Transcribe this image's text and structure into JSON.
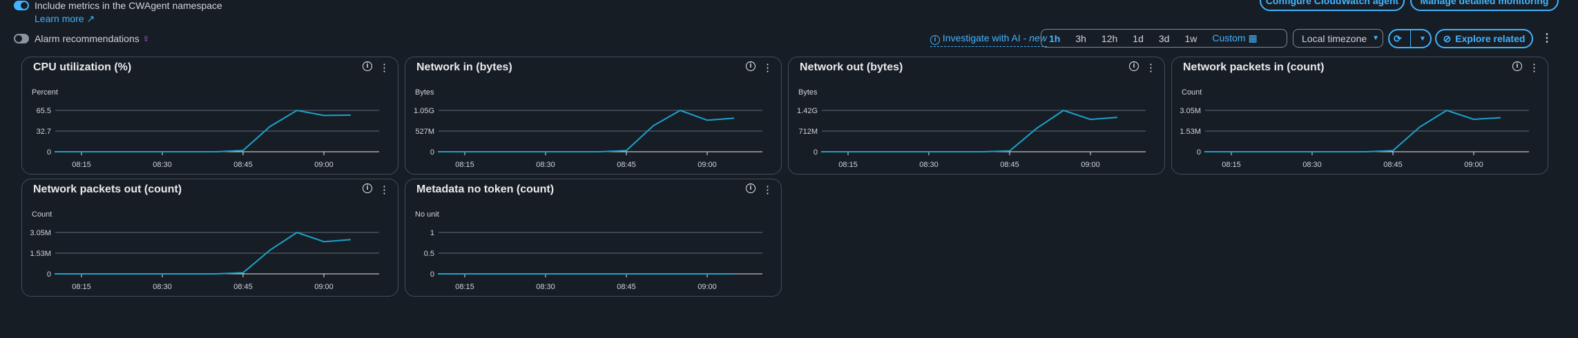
{
  "top": {
    "namespace_text": "Include metrics in the CWAgent namespace",
    "learn_more": "Learn more",
    "configure_agent": "Configure CloudWatch agent",
    "manage_monitoring": "Manage detailed monitoring",
    "alarm_recommendations": "Alarm recommendations",
    "investigate": "Investigate with AI - ",
    "investigate_new": "new",
    "time_ranges": [
      "1h",
      "3h",
      "12h",
      "1d",
      "3d",
      "1w",
      "Custom"
    ],
    "selected_range": "1h",
    "timezone": "Local timezone",
    "explore": "Explore related"
  },
  "colors": {
    "line": "#1aa3cc",
    "accent": "#42b4ff",
    "grid": "#5f6b7a"
  },
  "chart_data": [
    {
      "type": "line",
      "title": "CPU utilization (%)",
      "ylabel": "Percent",
      "ylim": [
        0,
        65.5
      ],
      "yticks": [
        "0",
        "32.7",
        "65.5"
      ],
      "xticks": [
        "08:15",
        "08:30",
        "08:45",
        "09:00"
      ],
      "x": [
        "08:10",
        "08:15",
        "08:20",
        "08:25",
        "08:30",
        "08:35",
        "08:40",
        "08:45",
        "08:50",
        "08:55",
        "09:00",
        "09:05"
      ],
      "values": [
        0,
        0,
        0,
        0,
        0,
        0,
        0,
        2,
        40,
        65.5,
        57.5,
        58
      ]
    },
    {
      "type": "line",
      "title": "Network in (bytes)",
      "ylabel": "Bytes",
      "ylim": [
        0,
        1.05
      ],
      "yticks": [
        "0",
        "527M",
        "1.05G"
      ],
      "xticks": [
        "08:15",
        "08:30",
        "08:45",
        "09:00"
      ],
      "x": [
        "08:10",
        "08:15",
        "08:20",
        "08:25",
        "08:30",
        "08:35",
        "08:40",
        "08:45",
        "08:50",
        "08:55",
        "09:00",
        "09:05"
      ],
      "values": [
        0,
        0,
        0,
        0,
        0,
        0,
        0,
        0.03,
        0.66,
        1.05,
        0.8,
        0.85
      ],
      "unit": "G"
    },
    {
      "type": "line",
      "title": "Network out (bytes)",
      "ylabel": "Bytes",
      "ylim": [
        0,
        1.42
      ],
      "yticks": [
        "0",
        "712M",
        "1.42G"
      ],
      "xticks": [
        "08:15",
        "08:30",
        "08:45",
        "09:00"
      ],
      "x": [
        "08:10",
        "08:15",
        "08:20",
        "08:25",
        "08:30",
        "08:35",
        "08:40",
        "08:45",
        "08:50",
        "08:55",
        "09:00",
        "09:05"
      ],
      "values": [
        0,
        0,
        0,
        0,
        0,
        0,
        0,
        0.03,
        0.8,
        1.42,
        1.11,
        1.18
      ],
      "unit": "G"
    },
    {
      "type": "line",
      "title": "Network packets in (count)",
      "ylabel": "Count",
      "ylim": [
        0,
        3.05
      ],
      "yticks": [
        "0",
        "1.53M",
        "3.05M"
      ],
      "xticks": [
        "08:15",
        "08:30",
        "08:45",
        "09:00"
      ],
      "x": [
        "08:10",
        "08:15",
        "08:20",
        "08:25",
        "08:30",
        "08:35",
        "08:40",
        "08:45",
        "08:50",
        "08:55",
        "09:00",
        "09:05"
      ],
      "values": [
        0,
        0,
        0,
        0,
        0,
        0,
        0,
        0.08,
        1.83,
        3.05,
        2.39,
        2.51
      ],
      "unit": "M"
    },
    {
      "type": "line",
      "title": "Network packets out (count)",
      "ylabel": "Count",
      "ylim": [
        0,
        3.05
      ],
      "yticks": [
        "0",
        "1.53M",
        "3.05M"
      ],
      "xticks": [
        "08:15",
        "08:30",
        "08:45",
        "09:00"
      ],
      "x": [
        "08:10",
        "08:15",
        "08:20",
        "08:25",
        "08:30",
        "08:35",
        "08:40",
        "08:45",
        "08:50",
        "08:55",
        "09:00",
        "09:05"
      ],
      "values": [
        0,
        0,
        0,
        0,
        0,
        0,
        0,
        0.08,
        1.75,
        3.05,
        2.37,
        2.52
      ],
      "unit": "M"
    },
    {
      "type": "line",
      "title": "Metadata no token (count)",
      "ylabel": "No unit",
      "ylim": [
        0,
        1
      ],
      "yticks": [
        "0",
        "0.5",
        "1"
      ],
      "xticks": [
        "08:15",
        "08:30",
        "08:45",
        "09:00"
      ],
      "x": [
        "08:10",
        "08:15",
        "08:20",
        "08:25",
        "08:30",
        "08:35",
        "08:40",
        "08:45",
        "08:50",
        "08:55",
        "09:00",
        "09:05"
      ],
      "values": [
        0,
        0,
        0,
        0,
        0,
        0,
        0,
        0,
        0,
        0,
        0,
        0
      ]
    }
  ]
}
